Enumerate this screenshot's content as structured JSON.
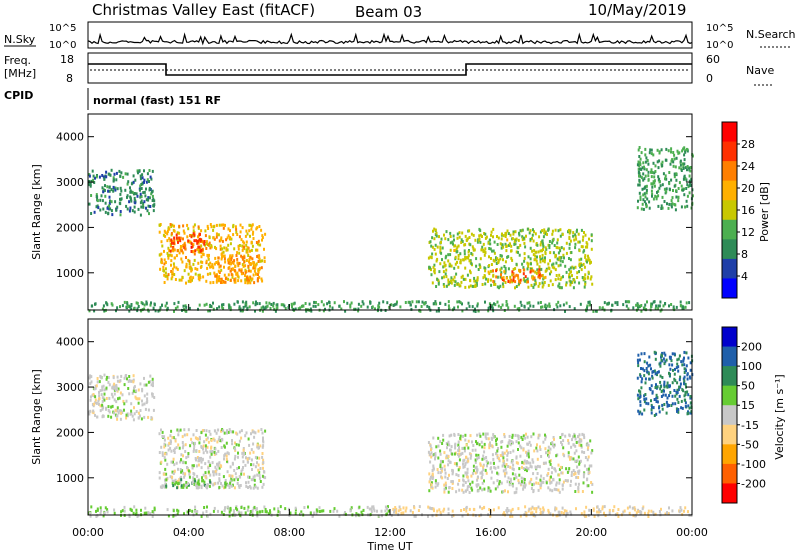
{
  "header": {
    "title": "Christmas Valley East (fitACF)",
    "beam": "Beam 03",
    "date": "10/May/2019"
  },
  "top_panel": {
    "nsky_label": "N.Sky",
    "nsearch_label": "N.Search",
    "count_ticks": [
      "10^5",
      "10^0"
    ],
    "freq_label_line1": "Freq.",
    "freq_label_line2": "[MHz]",
    "freq_ticks": [
      "18",
      "8"
    ],
    "nave_label": "Nave",
    "nave_ticks": [
      "60",
      "0"
    ],
    "cpid_label": "CPID",
    "cpid_text": "normal (fast) 151 RF"
  },
  "x_axis": {
    "label": "Time UT",
    "ticks": [
      "00:00",
      "04:00",
      "08:00",
      "12:00",
      "16:00",
      "20:00",
      "00:00"
    ]
  },
  "power_panel": {
    "ylabel": "Slant Range [km]",
    "yticks": [
      "4000",
      "3000",
      "2000",
      "1000"
    ],
    "colorbar_title": "Power [dB]",
    "colorbar_ticks": [
      "28",
      "24",
      "20",
      "16",
      "12",
      "8",
      "4"
    ],
    "colors": [
      "#0000ff",
      "#1f3fa8",
      "#2e8b57",
      "#4caf50",
      "#c8c800",
      "#ffb000",
      "#ff7f00",
      "#ff3000",
      "#ff0000"
    ]
  },
  "velocity_panel": {
    "ylabel": "Slant Range [km]",
    "yticks": [
      "4000",
      "3000",
      "2000",
      "1000"
    ],
    "colorbar_title": "Velocity [m s⁻¹]",
    "colorbar_ticks": [
      "200",
      "100",
      "50",
      "15",
      "-15",
      "-50",
      "-100",
      "-200"
    ],
    "colors": [
      "#0000cc",
      "#1f5faa",
      "#2e8b57",
      "#66cc33",
      "#c8c8c8",
      "#ffd27f",
      "#ffa500",
      "#ff6000",
      "#ff0000"
    ]
  },
  "chart_data": [
    {
      "type": "heatmap",
      "title": "Power [dB]",
      "xlabel": "Time UT",
      "ylabel": "Slant Range [km]",
      "xlim": [
        0,
        24
      ],
      "ylim": [
        180,
        4500
      ],
      "zlim": [
        0,
        30
      ],
      "regions": [
        {
          "t0": 0.0,
          "t1": 2.6,
          "r0": 2300,
          "r1": 3300,
          "value": 8
        },
        {
          "t0": 2.8,
          "t1": 7.0,
          "r0": 800,
          "r1": 2100,
          "value": 18
        },
        {
          "t0": 3.2,
          "t1": 4.8,
          "r0": 1500,
          "r1": 1900,
          "value": 24
        },
        {
          "t0": 5.0,
          "t1": 6.8,
          "r0": 800,
          "r1": 1400,
          "value": 20
        },
        {
          "t0": 13.5,
          "t1": 20.0,
          "r0": 700,
          "r1": 2000,
          "value": 14
        },
        {
          "t0": 16.0,
          "t1": 18.0,
          "r0": 800,
          "r1": 1100,
          "value": 22
        },
        {
          "t0": 21.8,
          "t1": 24.0,
          "r0": 2400,
          "r1": 3800,
          "value": 10
        },
        {
          "t0": 0.0,
          "t1": 24.0,
          "r0": 180,
          "r1": 400,
          "value": 10
        }
      ]
    },
    {
      "type": "heatmap",
      "title": "Velocity [m s⁻¹]",
      "xlabel": "Time UT",
      "ylabel": "Slant Range [km]",
      "xlim": [
        0,
        24
      ],
      "ylim": [
        180,
        4500
      ],
      "zlim": [
        -200,
        200
      ],
      "regions": [
        {
          "t0": 0.0,
          "t1": 2.6,
          "r0": 2300,
          "r1": 3300,
          "value": 0
        },
        {
          "t0": 2.8,
          "t1": 7.0,
          "r0": 800,
          "r1": 2100,
          "value": 0
        },
        {
          "t0": 3.0,
          "t1": 6.0,
          "r0": 800,
          "r1": 1000,
          "value": 40
        },
        {
          "t0": 13.5,
          "t1": 20.0,
          "r0": 700,
          "r1": 2000,
          "value": 0
        },
        {
          "t0": 21.8,
          "t1": 24.0,
          "r0": 2400,
          "r1": 3800,
          "value": 120
        },
        {
          "t0": 0.0,
          "t1": 12.0,
          "r0": 180,
          "r1": 400,
          "value": 30
        },
        {
          "t0": 12.0,
          "t1": 24.0,
          "r0": 180,
          "r1": 400,
          "value": -30
        }
      ]
    }
  ]
}
